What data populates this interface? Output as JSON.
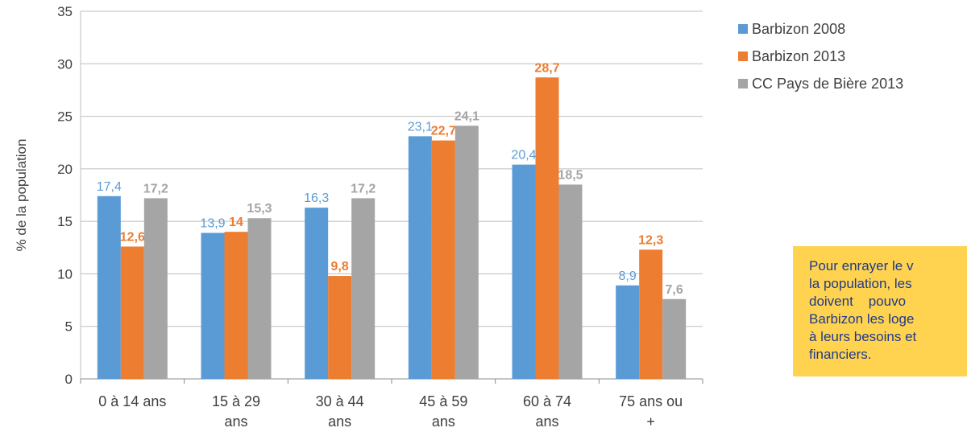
{
  "chart_data": {
    "type": "bar",
    "title": "",
    "xlabel": "",
    "ylabel": "% de la population",
    "ylim": [
      0,
      35
    ],
    "yticks": [
      "0",
      "5",
      "10",
      "15",
      "20",
      "25",
      "30",
      "35"
    ],
    "grid": true,
    "legend_position": "right",
    "categories": [
      [
        "0 à 14 ans"
      ],
      [
        "15 à 29",
        "ans"
      ],
      [
        "30 à 44",
        "ans"
      ],
      [
        "45 à 59",
        "ans"
      ],
      [
        "60 à 74",
        "ans"
      ],
      [
        "75 ans ou",
        "+"
      ]
    ],
    "series": [
      {
        "name": "Barbizon 2008",
        "color": "#5b9bd5",
        "label_color": "#5b9bd5",
        "label_bold": false,
        "values": [
          17.4,
          13.9,
          16.3,
          23.1,
          20.4,
          8.9
        ],
        "labels": [
          "17,4",
          "13,9",
          "16,3",
          "23,1",
          "20,4",
          "8,9"
        ]
      },
      {
        "name": "Barbizon 2013",
        "color": "#ed7d31",
        "label_color": "#ed7d31",
        "label_bold": true,
        "values": [
          12.6,
          14,
          9.8,
          22.7,
          28.7,
          12.3
        ],
        "labels": [
          "12,6",
          "14",
          "9,8",
          "22,7",
          "28,7",
          "12,3"
        ]
      },
      {
        "name": "CC Pays de Bière 2013",
        "color": "#a5a5a5",
        "label_color": "#a5a5a5",
        "label_bold": true,
        "values": [
          17.2,
          15.3,
          17.2,
          24.1,
          18.5,
          7.6
        ],
        "labels": [
          "17,2",
          "15,3",
          "17,2",
          "24,1",
          "18,5",
          "7,6"
        ]
      }
    ]
  },
  "note": {
    "lines": [
      "Pour enrayer le v",
      "la population, les",
      "doivent    pouvo",
      "Barbizon les loge",
      "à leurs besoins et",
      "financiers."
    ],
    "background": "#ffd350",
    "text_color": "#1f3a8a"
  }
}
